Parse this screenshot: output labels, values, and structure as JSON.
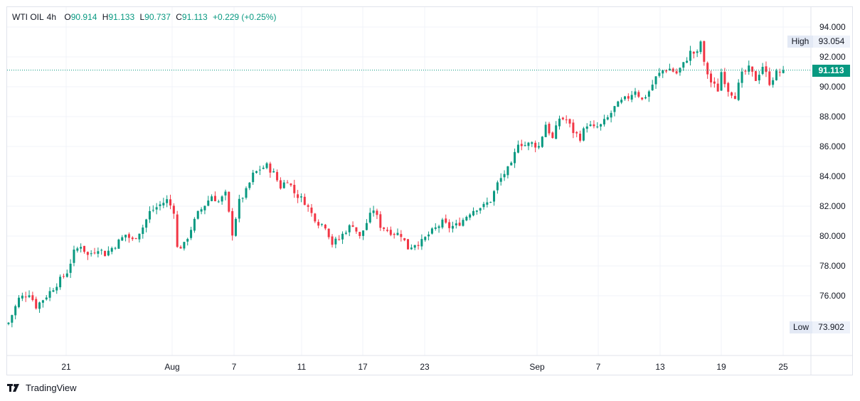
{
  "legend": {
    "symbol": "WTI OIL",
    "interval": "4h",
    "o_label": "O",
    "o_value": "90.914",
    "h_label": "H",
    "h_value": "91.133",
    "l_label": "L",
    "l_value": "90.737",
    "c_label": "C",
    "c_value": "91.113",
    "change": "+0.229 (+0.25%)"
  },
  "badges": {
    "high_label": "High",
    "high_value": "93.054",
    "low_label": "Low",
    "low_value": "73.902",
    "last_price": "91.113"
  },
  "footer": {
    "brand": "TradingView"
  },
  "colors": {
    "up": "#089981",
    "down": "#f23645",
    "grid": "#f0f3fa",
    "text": "#131722"
  },
  "chart_data": {
    "type": "candlestick",
    "title": "",
    "ylim": [
      73.0,
      95.0
    ],
    "y_ticks": [
      "94.000",
      "92.000",
      "90.000",
      "88.000",
      "86.000",
      "84.000",
      "82.000",
      "80.000",
      "78.000",
      "76.000"
    ],
    "x_tick_labels": [
      "21",
      "Aug",
      "7",
      "11",
      "17",
      "23",
      "Sep",
      "7",
      "13",
      "19",
      "25"
    ],
    "grid": true,
    "last_price": 91.113,
    "close_path": [
      [
        0,
        74.2
      ],
      [
        3,
        75.8
      ],
      [
        6,
        76.2
      ],
      [
        8,
        75.3
      ],
      [
        11,
        76.0
      ],
      [
        14,
        76.8
      ],
      [
        17,
        77.6
      ],
      [
        19,
        78.9
      ],
      [
        21,
        79.4
      ],
      [
        23,
        78.7
      ],
      [
        26,
        79.2
      ],
      [
        28,
        78.8
      ],
      [
        31,
        79.4
      ],
      [
        34,
        80.1
      ],
      [
        36,
        79.7
      ],
      [
        39,
        80.6
      ],
      [
        41,
        81.6
      ],
      [
        44,
        82.1
      ],
      [
        46,
        82.4
      ],
      [
        48,
        81.7
      ],
      [
        49,
        79.2
      ],
      [
        51,
        79.4
      ],
      [
        53,
        80.5
      ],
      [
        55,
        81.5
      ],
      [
        57,
        82.1
      ],
      [
        59,
        82.7
      ],
      [
        61,
        82.3
      ],
      [
        63,
        82.8
      ],
      [
        65,
        80.2
      ],
      [
        67,
        82.3
      ],
      [
        69,
        83.0
      ],
      [
        71,
        84.1
      ],
      [
        73,
        84.5
      ],
      [
        75,
        84.7
      ],
      [
        77,
        84.2
      ],
      [
        79,
        83.3
      ],
      [
        81,
        83.8
      ],
      [
        83,
        82.9
      ],
      [
        86,
        82.3
      ],
      [
        88,
        81.5
      ],
      [
        90,
        80.9
      ],
      [
        92,
        80.7
      ],
      [
        94,
        79.5
      ],
      [
        96,
        79.8
      ],
      [
        98,
        80.4
      ],
      [
        100,
        80.8
      ],
      [
        102,
        79.9
      ],
      [
        104,
        80.9
      ],
      [
        106,
        81.8
      ],
      [
        108,
        80.7
      ],
      [
        110,
        80.4
      ],
      [
        112,
        80.2
      ],
      [
        114,
        80.1
      ],
      [
        116,
        79.2
      ],
      [
        118,
        79.5
      ],
      [
        120,
        79.6
      ],
      [
        122,
        80.1
      ],
      [
        124,
        80.5
      ],
      [
        126,
        80.9
      ],
      [
        128,
        80.6
      ],
      [
        130,
        80.7
      ],
      [
        132,
        81.1
      ],
      [
        134,
        81.6
      ],
      [
        136,
        81.9
      ],
      [
        138,
        82.0
      ],
      [
        140,
        82.4
      ],
      [
        142,
        83.5
      ],
      [
        144,
        84.2
      ],
      [
        146,
        84.7
      ],
      [
        148,
        86.3
      ],
      [
        150,
        86.1
      ],
      [
        152,
        86.2
      ],
      [
        154,
        86.0
      ],
      [
        156,
        87.5
      ],
      [
        158,
        86.5
      ],
      [
        160,
        87.9
      ],
      [
        162,
        87.8
      ],
      [
        164,
        87.0
      ],
      [
        166,
        86.6
      ],
      [
        168,
        87.5
      ],
      [
        170,
        87.2
      ],
      [
        172,
        87.4
      ],
      [
        174,
        87.9
      ],
      [
        176,
        88.6
      ],
      [
        178,
        89.0
      ],
      [
        180,
        89.3
      ],
      [
        182,
        89.8
      ],
      [
        184,
        89.1
      ],
      [
        186,
        89.7
      ],
      [
        188,
        90.6
      ],
      [
        190,
        91.1
      ],
      [
        192,
        91.2
      ],
      [
        194,
        90.9
      ],
      [
        196,
        91.5
      ],
      [
        198,
        92.3
      ],
      [
        200,
        92.2
      ],
      [
        201,
        93.05
      ],
      [
        202,
        91.5
      ],
      [
        204,
        90.3
      ],
      [
        206,
        89.8
      ],
      [
        207,
        91.0
      ],
      [
        209,
        89.8
      ],
      [
        211,
        89.4
      ],
      [
        213,
        90.8
      ],
      [
        215,
        91.2
      ],
      [
        217,
        90.5
      ],
      [
        219,
        91.4
      ],
      [
        221,
        90.3
      ],
      [
        223,
        90.9
      ],
      [
        225,
        91.113
      ]
    ]
  }
}
